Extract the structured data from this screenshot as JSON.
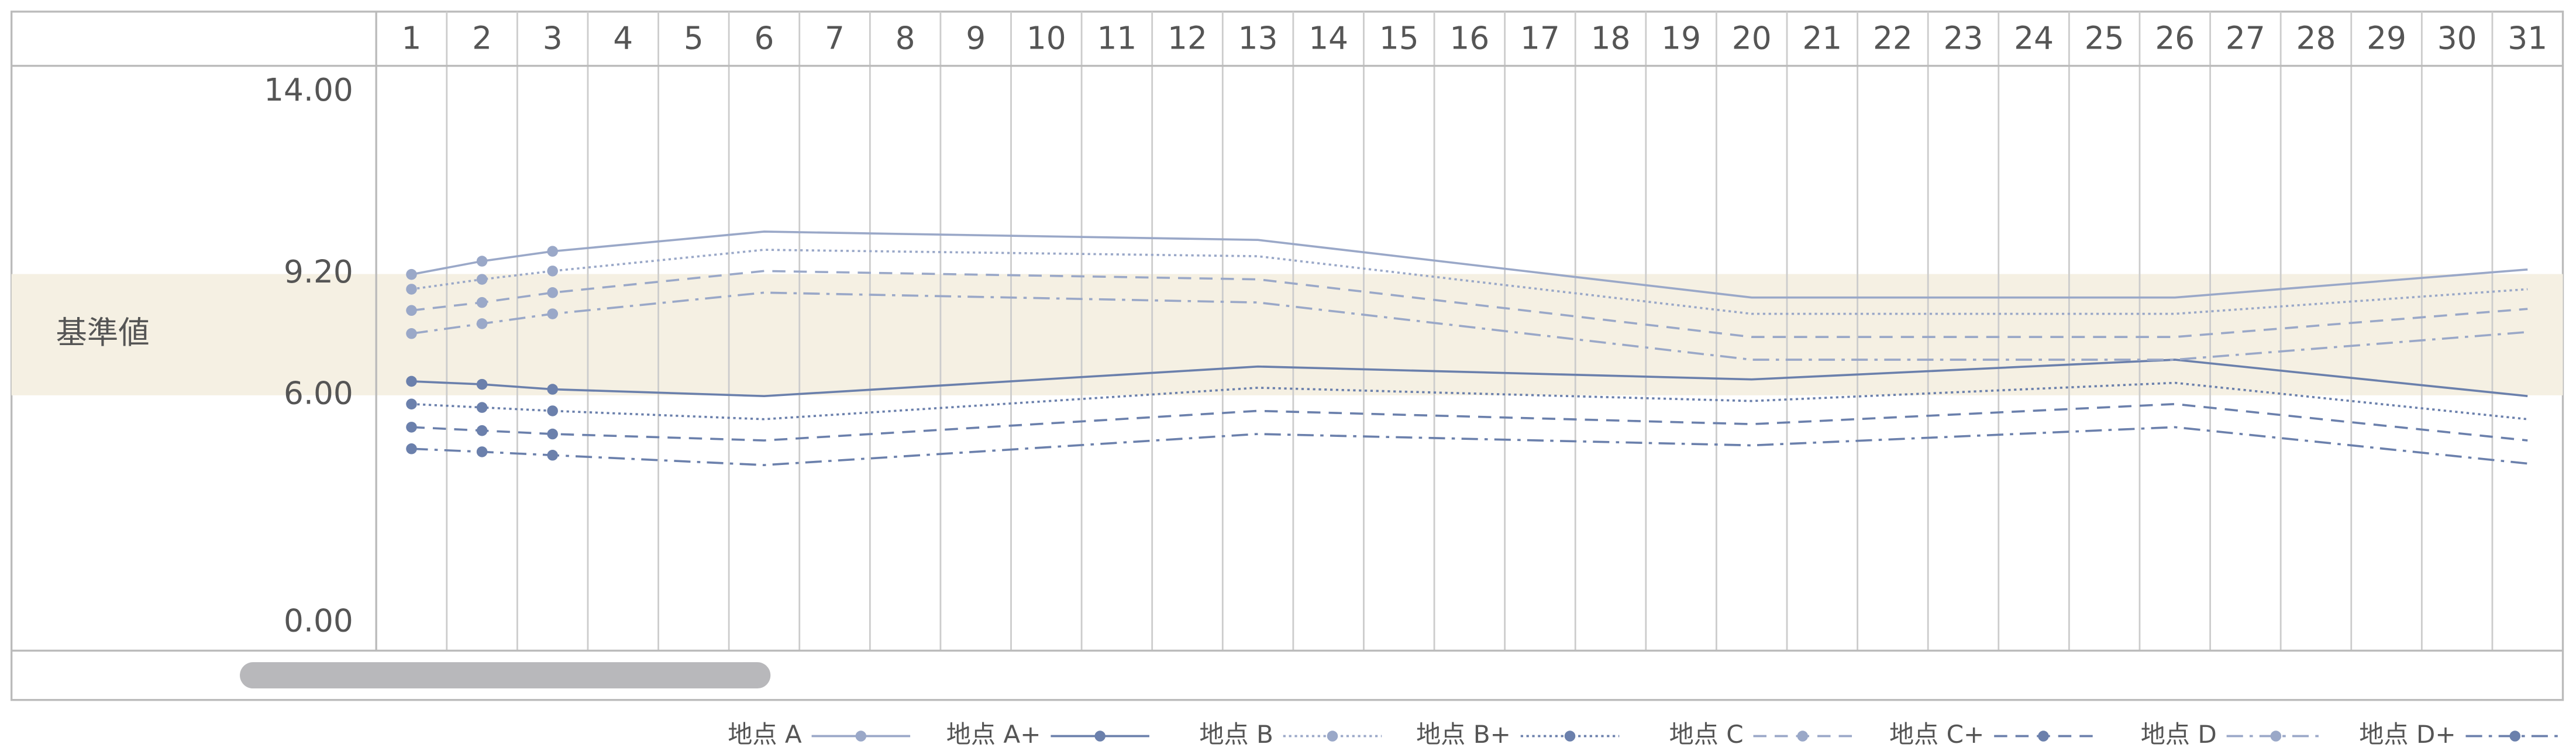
{
  "chart_data": {
    "type": "line",
    "band": {
      "label": "基準値",
      "range": [
        6,
        9.2
      ],
      "color": "#f5f0e3"
    },
    "x": [
      1,
      2,
      3,
      6,
      13,
      20,
      26,
      31
    ],
    "xlim": [
      0.5,
      31.5
    ],
    "xticks": [
      1,
      2,
      3,
      4,
      5,
      6,
      7,
      8,
      9,
      10,
      11,
      12,
      13,
      14,
      15,
      16,
      17,
      18,
      19,
      20,
      21,
      22,
      23,
      24,
      25,
      26,
      27,
      28,
      29,
      30,
      31
    ],
    "ylim": [
      0,
      14
    ],
    "yticks": [
      {
        "value": 0,
        "label": "0.00"
      },
      {
        "value": 6,
        "label": "6.00"
      },
      {
        "value": 9.2,
        "label": "9.20"
      },
      {
        "value": 14,
        "label": "14.00"
      }
    ],
    "series": [
      {
        "name": "地点 A",
        "color": "#9aa8c8",
        "dash": "solid",
        "values": [
          9.19,
          9.54,
          9.8,
          10.32,
          10.1,
          8.58,
          8.58,
          9.32
        ]
      },
      {
        "name": "地点 A+",
        "color": "#6b80ac",
        "dash": "solid",
        "values": [
          6.37,
          6.29,
          6.16,
          5.98,
          6.76,
          6.42,
          6.94,
          5.98
        ]
      },
      {
        "name": "地点 B",
        "color": "#9aa8c8",
        "dash": "dotted",
        "values": [
          8.8,
          9.06,
          9.28,
          9.84,
          9.67,
          8.15,
          8.15,
          8.8
        ]
      },
      {
        "name": "地点 B+",
        "color": "#6b80ac",
        "dash": "dotted",
        "values": [
          5.77,
          5.68,
          5.59,
          5.37,
          6.2,
          5.85,
          6.33,
          5.37
        ]
      },
      {
        "name": "地点 C",
        "color": "#9aa8c8",
        "dash": "dashed",
        "values": [
          8.24,
          8.45,
          8.71,
          9.28,
          9.06,
          7.54,
          7.54,
          8.28
        ]
      },
      {
        "name": "地点 C+",
        "color": "#6b80ac",
        "dash": "dashed",
        "values": [
          5.16,
          5.07,
          4.98,
          4.81,
          5.59,
          5.24,
          5.77,
          4.81
        ]
      },
      {
        "name": "地点 D",
        "color": "#9aa8c8",
        "dash": "dashdot",
        "values": [
          7.63,
          7.89,
          8.15,
          8.71,
          8.45,
          6.94,
          6.94,
          7.67
        ]
      },
      {
        "name": "地点 D+",
        "color": "#6b80ac",
        "dash": "dashdot",
        "values": [
          4.59,
          4.51,
          4.42,
          4.16,
          4.98,
          4.68,
          5.16,
          4.2
        ]
      }
    ]
  }
}
